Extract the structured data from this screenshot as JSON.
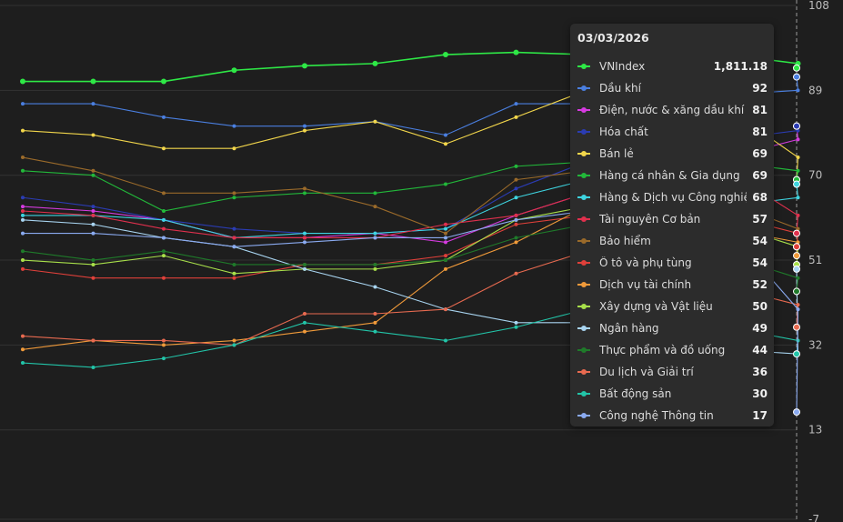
{
  "chart_data": {
    "type": "line",
    "yaxis_ticks": [
      108,
      89,
      70,
      51,
      32,
      13,
      -7
    ],
    "ylim": [
      -7,
      108
    ],
    "tooltip_date": "03/03/2026",
    "series": [
      {
        "name": "VNIndex",
        "display_value": "1,811.18",
        "color": "#2ee846",
        "values": [
          91,
          91,
          91,
          93.5,
          94.5,
          95,
          97,
          97.5,
          97,
          98,
          97,
          95,
          94
        ]
      },
      {
        "name": "Dầu khí",
        "display_value": "92",
        "color": "#4a7fe0",
        "values": [
          86,
          86,
          83,
          81,
          81,
          82,
          79,
          86,
          86,
          87,
          88,
          89,
          92
        ]
      },
      {
        "name": "Điện, nước & xăng dầu khí đốt",
        "display_value": "81",
        "color": "#d63be0",
        "values": [
          63,
          62,
          60,
          56,
          56,
          57,
          55,
          61,
          66,
          71,
          74,
          78,
          81
        ]
      },
      {
        "name": "Hóa chất",
        "display_value": "81",
        "color": "#2b3cb3",
        "values": [
          65,
          63,
          60,
          58,
          57,
          57,
          58,
          67,
          73,
          76,
          78,
          80,
          81
        ]
      },
      {
        "name": "Bán lẻ",
        "display_value": "69",
        "color": "#f2d64b",
        "values": [
          80,
          79,
          76,
          76,
          80,
          82,
          77,
          83,
          89,
          89,
          85,
          74,
          69
        ]
      },
      {
        "name": "Hàng cá nhân & Gia dụng",
        "display_value": "69",
        "color": "#22b83a",
        "values": [
          71,
          70,
          62,
          65,
          66,
          66,
          68,
          72,
          73,
          75,
          73,
          71,
          69
        ]
      },
      {
        "name": "Hàng & Dịch vụ Công nghiệp",
        "display_value": "68",
        "color": "#3ed4e0",
        "values": [
          61,
          61,
          60,
          56,
          57,
          57,
          58,
          65,
          69,
          64,
          63,
          65,
          68
        ]
      },
      {
        "name": "Tài nguyên Cơ bản",
        "display_value": "57",
        "color": "#e0304d",
        "values": [
          62,
          61,
          58,
          56,
          56,
          56,
          59,
          61,
          66,
          74,
          71,
          61,
          57
        ]
      },
      {
        "name": "Bảo hiểm",
        "display_value": "54",
        "color": "#9a6a2a",
        "values": [
          74,
          71,
          66,
          66,
          67,
          63,
          57,
          69,
          71,
          71,
          64,
          58,
          54
        ]
      },
      {
        "name": "Ô tô và phụ tùng",
        "display_value": "54",
        "color": "#e0403a",
        "values": [
          49,
          47,
          47,
          47,
          50,
          50,
          52,
          59,
          61,
          62,
          61,
          57,
          54
        ]
      },
      {
        "name": "Dịch vụ tài chính",
        "display_value": "52",
        "color": "#f09a3a",
        "values": [
          31,
          33,
          32,
          33,
          35,
          37,
          49,
          55,
          63,
          60,
          58,
          55,
          52
        ]
      },
      {
        "name": "Xây dựng và Vật liệu",
        "display_value": "50",
        "color": "#a8e04a",
        "values": [
          51,
          50,
          52,
          48,
          49,
          49,
          51,
          60,
          63,
          64,
          59,
          54,
          50
        ]
      },
      {
        "name": "Ngân hàng",
        "display_value": "49",
        "color": "#a8d4f0",
        "values": [
          60,
          59,
          56,
          54,
          49,
          45,
          40,
          37,
          37,
          34,
          31,
          30,
          49
        ]
      },
      {
        "name": "Thực phẩm và đồ uống",
        "display_value": "44",
        "color": "#1f7a2a",
        "values": [
          53,
          51,
          53,
          50,
          50,
          50,
          51,
          56,
          59,
          58,
          52,
          47,
          44
        ]
      },
      {
        "name": "Du lịch và Giải trí",
        "display_value": "36",
        "color": "#e86a50",
        "values": [
          34,
          33,
          33,
          32,
          39,
          39,
          40,
          48,
          53,
          48,
          45,
          41,
          36
        ]
      },
      {
        "name": "Bất động sản",
        "display_value": "30",
        "color": "#22c4a8",
        "values": [
          28,
          27,
          29,
          32,
          37,
          35,
          33,
          36,
          40,
          39,
          36,
          33,
          30
        ]
      },
      {
        "name": "Công nghệ Thông tin",
        "display_value": "17",
        "color": "#8aaaf0",
        "values": [
          57,
          57,
          56,
          54,
          55,
          56,
          56,
          60,
          62,
          67,
          58,
          40,
          17
        ]
      }
    ]
  }
}
